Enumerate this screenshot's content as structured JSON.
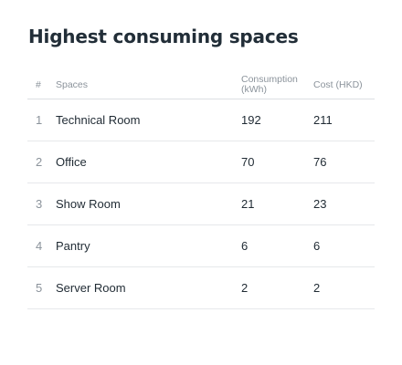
{
  "title": "Highest consuming spaces",
  "table": {
    "headers": {
      "index": "#",
      "space": "Spaces",
      "consumption": "Consumption (kWh)",
      "cost": "Cost (HKD)"
    },
    "rows": [
      {
        "index": "1",
        "space": "Technical Room",
        "consumption": "192",
        "cost": "211"
      },
      {
        "index": "2",
        "space": "Office",
        "consumption": "70",
        "cost": "76"
      },
      {
        "index": "3",
        "space": "Show Room",
        "consumption": "21",
        "cost": "23"
      },
      {
        "index": "4",
        "space": "Pantry",
        "consumption": "6",
        "cost": "6"
      },
      {
        "index": "5",
        "space": "Server Room",
        "consumption": "2",
        "cost": "2"
      }
    ]
  }
}
